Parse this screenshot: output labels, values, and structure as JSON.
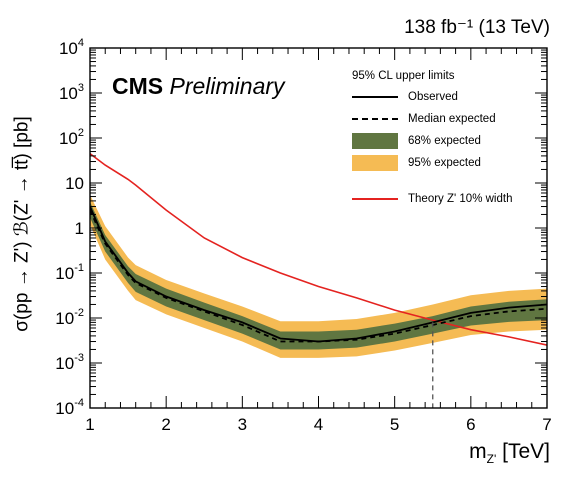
{
  "chart_data": {
    "type": "line",
    "lumi_label": "138 fb⁻¹ (13 TeV)",
    "experiment": "CMS",
    "status": "Preliminary",
    "xlabel": "m",
    "xlabel_sub": "Z'",
    "xlabel_unit": "[TeV]",
    "ylabel": "σ(pp → Z') ℬ(Z' → tt̅) [pb]",
    "xlim": [
      1,
      7
    ],
    "ylim": [
      0.0001,
      10000
    ],
    "yscale": "log",
    "x_ticks": [
      "1",
      "2",
      "3",
      "4",
      "5",
      "6",
      "7"
    ],
    "y_ticks": [
      {
        "base": "10",
        "exp": "-4",
        "value": 0.0001
      },
      {
        "base": "10",
        "exp": "-3",
        "value": 0.001
      },
      {
        "base": "10",
        "exp": "-2",
        "value": 0.01
      },
      {
        "base": "10",
        "exp": "-1",
        "value": 0.1
      },
      {
        "base": "1",
        "exp": "",
        "value": 1
      },
      {
        "base": "10",
        "exp": "",
        "value": 10
      },
      {
        "base": "10",
        "exp": "2",
        "value": 100
      },
      {
        "base": "10",
        "exp": "3",
        "value": 1000
      },
      {
        "base": "10",
        "exp": "4",
        "value": 10000
      }
    ],
    "legend_title": "95% CL upper limits",
    "legend_position": "top-right",
    "legend": [
      {
        "label": "Observed",
        "style": "solid-line",
        "color": "#000000"
      },
      {
        "label": "Median expected",
        "style": "dashed-line",
        "color": "#000000"
      },
      {
        "label": "68% expected",
        "style": "band",
        "color": "#607641"
      },
      {
        "label": "95% expected",
        "style": "band",
        "color": "#f5bb54"
      },
      {
        "label": "Theory Z' 10% width",
        "style": "solid-line",
        "color": "#e42320"
      }
    ],
    "x": [
      1.0,
      1.2,
      1.5,
      1.6,
      2.0,
      2.5,
      3.0,
      3.5,
      4.0,
      4.5,
      5.0,
      5.5,
      6.0,
      6.5,
      7.0
    ],
    "series": [
      {
        "name": "Observed",
        "values": [
          3.0,
          0.5,
          0.1,
          0.065,
          0.03,
          0.015,
          0.008,
          0.0035,
          0.003,
          0.0035,
          0.005,
          0.008,
          0.013,
          0.017,
          0.02
        ]
      },
      {
        "name": "Median expected",
        "values": [
          2.5,
          0.45,
          0.09,
          0.06,
          0.028,
          0.014,
          0.007,
          0.003,
          0.003,
          0.0033,
          0.0045,
          0.007,
          0.011,
          0.014,
          0.016
        ]
      },
      {
        "name": "Theory Z' 10% width",
        "values": [
          45,
          25,
          12,
          9,
          2.5,
          0.6,
          0.22,
          0.1,
          0.05,
          0.028,
          0.015,
          0.009,
          0.0055,
          0.0038,
          0.0025
        ]
      }
    ],
    "bands": [
      {
        "name": "95% expected",
        "lower": [
          1.2,
          0.2,
          0.04,
          0.025,
          0.012,
          0.006,
          0.003,
          0.0013,
          0.0013,
          0.0014,
          0.0019,
          0.0028,
          0.0042,
          0.005,
          0.0055
        ],
        "upper": [
          5.5,
          1.1,
          0.22,
          0.15,
          0.07,
          0.035,
          0.018,
          0.0085,
          0.0085,
          0.0095,
          0.013,
          0.02,
          0.032,
          0.04,
          0.045
        ]
      },
      {
        "name": "68% expected",
        "lower": [
          1.7,
          0.3,
          0.06,
          0.038,
          0.018,
          0.009,
          0.0045,
          0.002,
          0.002,
          0.0022,
          0.003,
          0.0045,
          0.0068,
          0.0082,
          0.009
        ],
        "upper": [
          3.8,
          0.7,
          0.14,
          0.095,
          0.045,
          0.022,
          0.011,
          0.005,
          0.005,
          0.0055,
          0.0075,
          0.011,
          0.018,
          0.023,
          0.026
        ]
      }
    ],
    "crossing_marker": {
      "x": 5.5,
      "y": 0.008
    }
  }
}
